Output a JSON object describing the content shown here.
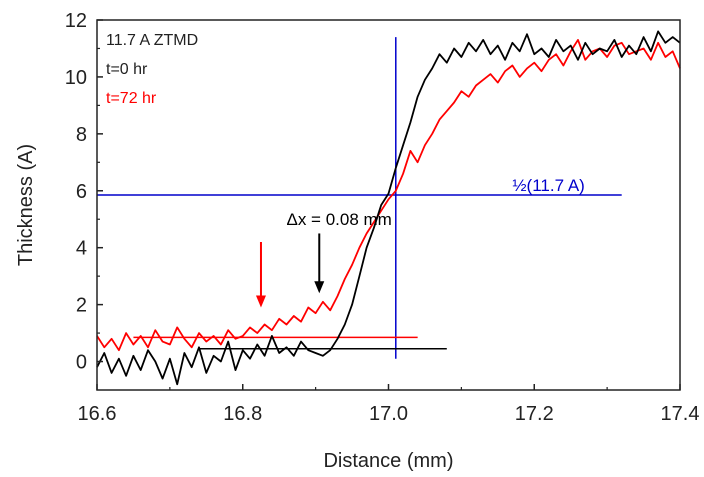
{
  "chart_data": {
    "type": "line",
    "xlabel": "Distance (mm)",
    "ylabel": "Thickness (A)",
    "xlim": [
      16.6,
      17.4
    ],
    "ylim": [
      -1,
      12
    ],
    "xticks": [
      16.6,
      16.8,
      17.0,
      17.2,
      17.4
    ],
    "xtick_labels": [
      "16.6",
      "16.8",
      "17.0",
      "17.2",
      "17.4"
    ],
    "yticks": [
      0,
      2,
      4,
      6,
      8,
      10,
      12
    ],
    "ytick_labels": [
      "0",
      "2",
      "4",
      "6",
      "8",
      "10",
      "12"
    ],
    "grid": false,
    "legend_position": "top-left",
    "legend_title": "11.7 A ZTMD",
    "series": [
      {
        "name": "t=0 hr",
        "color": "#000000",
        "x": [
          16.6,
          16.61,
          16.62,
          16.63,
          16.64,
          16.65,
          16.66,
          16.67,
          16.68,
          16.69,
          16.7,
          16.71,
          16.72,
          16.73,
          16.74,
          16.75,
          16.76,
          16.77,
          16.78,
          16.79,
          16.8,
          16.81,
          16.82,
          16.83,
          16.84,
          16.85,
          16.86,
          16.87,
          16.88,
          16.89,
          16.9,
          16.91,
          16.92,
          16.93,
          16.94,
          16.95,
          16.96,
          16.97,
          16.98,
          16.99,
          17.0,
          17.01,
          17.02,
          17.03,
          17.04,
          17.05,
          17.06,
          17.07,
          17.08,
          17.09,
          17.1,
          17.11,
          17.12,
          17.13,
          17.14,
          17.15,
          17.16,
          17.17,
          17.18,
          17.19,
          17.2,
          17.21,
          17.22,
          17.23,
          17.24,
          17.25,
          17.26,
          17.27,
          17.28,
          17.29,
          17.3,
          17.31,
          17.32,
          17.33,
          17.34,
          17.35,
          17.36,
          17.37,
          17.38,
          17.39,
          17.4
        ],
        "y": [
          -0.2,
          0.3,
          -0.4,
          0.1,
          -0.5,
          0.2,
          -0.3,
          0.4,
          0.0,
          -0.6,
          0.1,
          -0.8,
          0.3,
          -0.2,
          0.5,
          -0.4,
          0.2,
          0.0,
          0.7,
          -0.3,
          0.4,
          0.1,
          0.6,
          0.2,
          0.9,
          0.3,
          0.5,
          0.2,
          0.7,
          0.4,
          0.3,
          0.2,
          0.4,
          0.8,
          1.3,
          2.0,
          3.0,
          4.0,
          4.7,
          5.5,
          5.9,
          6.8,
          7.6,
          8.4,
          9.3,
          9.9,
          10.3,
          10.8,
          10.5,
          11.0,
          10.7,
          11.2,
          10.9,
          11.3,
          10.8,
          11.1,
          10.6,
          11.2,
          10.9,
          11.5,
          10.8,
          11.0,
          10.7,
          11.3,
          10.9,
          11.1,
          10.6,
          11.2,
          10.8,
          11.0,
          10.9,
          11.3,
          10.7,
          11.1,
          10.8,
          11.4,
          10.9,
          11.6,
          11.2,
          11.4,
          11.2
        ]
      },
      {
        "name": "t=72 hr",
        "color": "#ff0000",
        "x": [
          16.6,
          16.61,
          16.62,
          16.63,
          16.64,
          16.65,
          16.66,
          16.67,
          16.68,
          16.69,
          16.7,
          16.71,
          16.72,
          16.73,
          16.74,
          16.75,
          16.76,
          16.77,
          16.78,
          16.79,
          16.8,
          16.81,
          16.82,
          16.83,
          16.84,
          16.85,
          16.86,
          16.87,
          16.88,
          16.89,
          16.9,
          16.91,
          16.92,
          16.93,
          16.94,
          16.95,
          16.96,
          16.97,
          16.98,
          16.99,
          17.0,
          17.01,
          17.02,
          17.03,
          17.04,
          17.05,
          17.06,
          17.07,
          17.08,
          17.09,
          17.1,
          17.11,
          17.12,
          17.13,
          17.14,
          17.15,
          17.16,
          17.17,
          17.18,
          17.19,
          17.2,
          17.21,
          17.22,
          17.23,
          17.24,
          17.25,
          17.26,
          17.27,
          17.28,
          17.29,
          17.3,
          17.31,
          17.32,
          17.33,
          17.34,
          17.35,
          17.36,
          17.37,
          17.38,
          17.39,
          17.4
        ],
        "y": [
          0.9,
          0.5,
          0.8,
          0.4,
          1.0,
          0.6,
          0.9,
          0.5,
          1.1,
          0.7,
          0.6,
          1.2,
          0.8,
          0.5,
          1.0,
          0.7,
          0.9,
          0.6,
          1.1,
          0.8,
          0.9,
          1.2,
          1.0,
          1.3,
          1.1,
          1.5,
          1.3,
          1.6,
          1.4,
          1.9,
          1.7,
          2.1,
          1.8,
          2.3,
          2.9,
          3.4,
          4.0,
          4.5,
          4.9,
          5.3,
          5.7,
          6.0,
          6.6,
          7.4,
          7.0,
          7.6,
          8.0,
          8.5,
          8.8,
          9.1,
          9.5,
          9.3,
          9.7,
          9.9,
          10.1,
          9.8,
          10.2,
          10.4,
          10.0,
          10.3,
          10.5,
          10.2,
          10.6,
          10.8,
          10.4,
          10.9,
          11.3,
          10.6,
          10.9,
          11.0,
          10.7,
          11.1,
          11.2,
          10.8,
          10.9,
          11.0,
          10.6,
          11.2,
          10.7,
          10.9,
          10.3
        ]
      }
    ],
    "reference_lines": [
      {
        "kind": "horizontal",
        "y": 5.85,
        "x_from": 16.6,
        "x_to": 17.32,
        "color": "#0000cc"
      },
      {
        "kind": "vertical",
        "x": 17.01,
        "y_from": 0.1,
        "y_to": 11.4,
        "color": "#0000cc"
      },
      {
        "kind": "horizontal",
        "y": 0.45,
        "x_from": 16.74,
        "x_to": 17.08,
        "color": "#000000"
      },
      {
        "kind": "horizontal",
        "y": 0.85,
        "x_from": 16.65,
        "x_to": 17.04,
        "color": "#ff0000"
      }
    ],
    "arrows": [
      {
        "x": 16.825,
        "y_from": 4.2,
        "y_to": 1.9,
        "color": "#ff0000"
      },
      {
        "x": 16.905,
        "y_from": 4.5,
        "y_to": 2.4,
        "color": "#000000"
      }
    ],
    "annotations": [
      {
        "text": "½(11.7 A)",
        "x": 17.17,
        "y": 6.0,
        "color": "#0000cc"
      },
      {
        "text": "Δx = 0.08 mm",
        "x": 16.86,
        "y": 4.8,
        "color": "#000000"
      }
    ]
  }
}
